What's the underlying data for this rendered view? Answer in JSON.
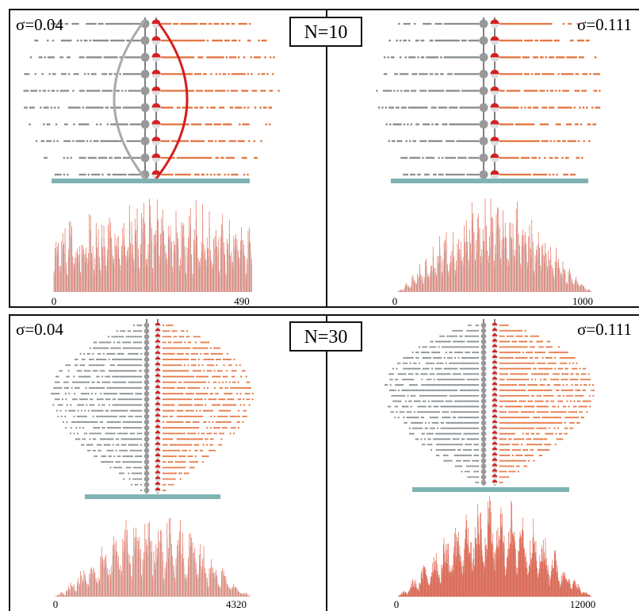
{
  "rows": [
    {
      "n_label": "N=10",
      "panels": [
        {
          "sigma": "σ=0.04",
          "axis_start": "0",
          "axis_end": "490"
        },
        {
          "sigma": "σ=0.111",
          "axis_start": "0",
          "axis_end": "1000"
        }
      ]
    },
    {
      "n_label": "N=30",
      "panels": [
        {
          "sigma": "σ=0.04",
          "axis_start": "0",
          "axis_end": "4320"
        },
        {
          "sigma": "σ=0.111",
          "axis_start": "0",
          "axis_end": "12000"
        }
      ]
    }
  ]
}
